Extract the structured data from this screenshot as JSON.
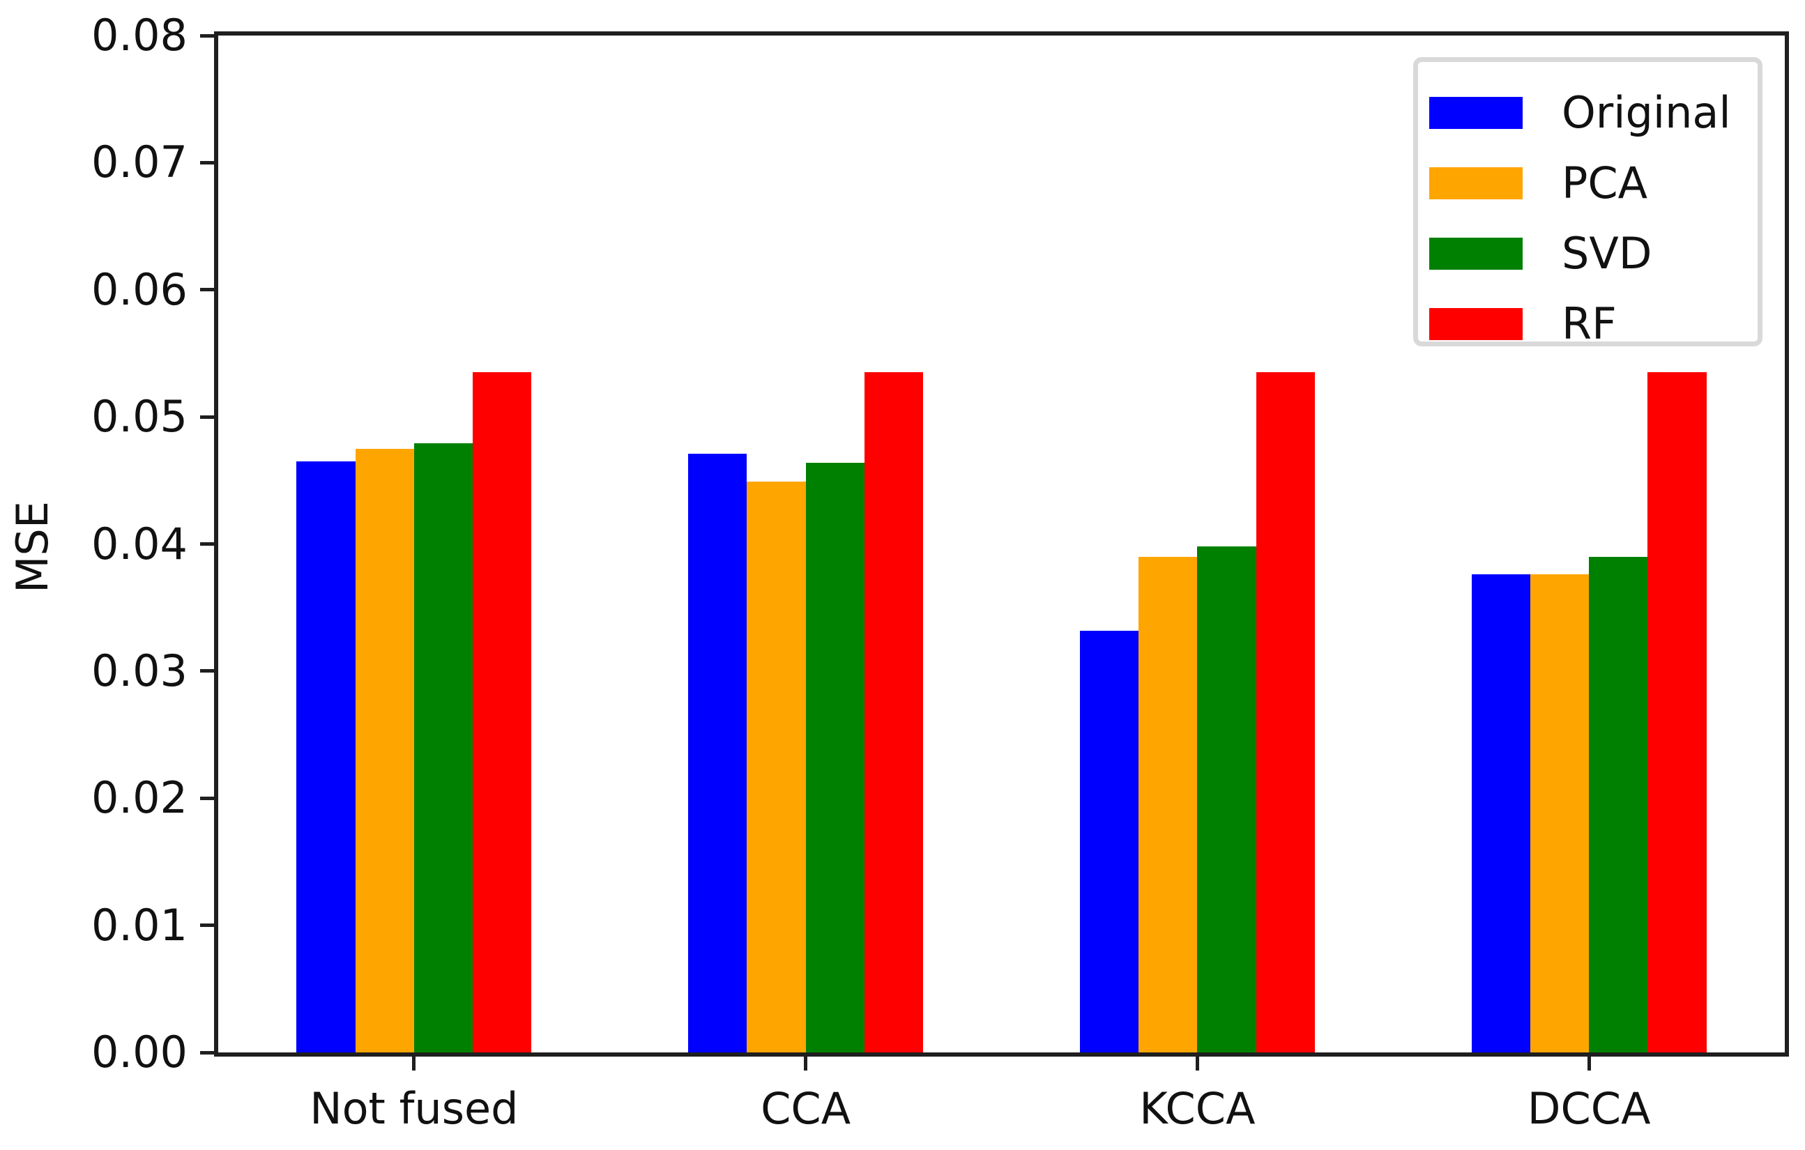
{
  "figure": {
    "background": "#ffffff",
    "axis_color": "#1f1f1f",
    "text_color": "#111111",
    "legend_border_color": "#d9d9d9"
  },
  "chart_data": {
    "type": "bar",
    "title": "",
    "xlabel": "",
    "ylabel": "MSE",
    "categories": [
      "Not fused",
      "CCA",
      "KCCA",
      "DCCA"
    ],
    "series": [
      {
        "name": "Original",
        "color": "#0000ff",
        "values": [
          0.0465,
          0.0471,
          0.0332,
          0.0376
        ]
      },
      {
        "name": "PCA",
        "color": "#ffa500",
        "values": [
          0.0475,
          0.0449,
          0.039,
          0.0376
        ]
      },
      {
        "name": "SVD",
        "color": "#008000",
        "values": [
          0.0479,
          0.0464,
          0.0398,
          0.039
        ]
      },
      {
        "name": "RF",
        "color": "#ff0000",
        "values": [
          0.0535,
          0.0535,
          0.0535,
          0.0535
        ]
      }
    ],
    "ylim": [
      0,
      0.08
    ],
    "ytick_labels": [
      "0.00",
      "0.01",
      "0.02",
      "0.03",
      "0.04",
      "0.05",
      "0.06",
      "0.07",
      "0.08"
    ],
    "grid": false,
    "legend_position": "upper right",
    "bar_width_fraction_of_plot": 0.0375,
    "group_centers_fraction": [
      0.125,
      0.375,
      0.625,
      0.875
    ]
  }
}
